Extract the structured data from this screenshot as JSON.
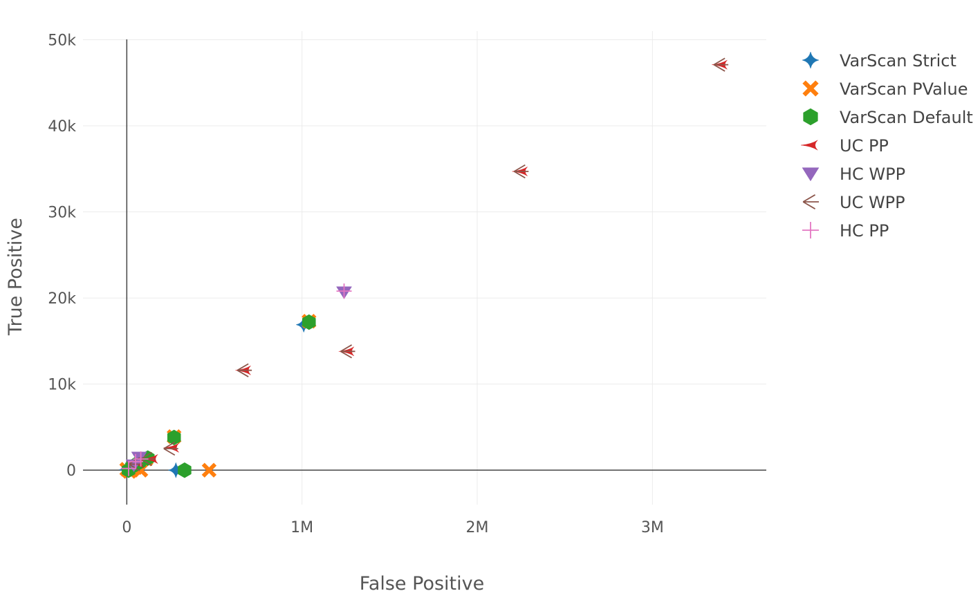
{
  "chart_data": {
    "type": "scatter",
    "title": "",
    "xlabel": "False Positive",
    "ylabel": "True Positive",
    "xlim": [
      -250000,
      3650000
    ],
    "ylim": [
      -4000,
      51000
    ],
    "x_ticks": [
      0,
      1000000,
      2000000,
      3000000
    ],
    "x_tick_labels": [
      "0",
      "1M",
      "2M",
      "3M"
    ],
    "y_ticks": [
      0,
      10000,
      20000,
      30000,
      40000,
      50000
    ],
    "y_tick_labels": [
      "0",
      "10k",
      "20k",
      "30k",
      "40k",
      "50k"
    ],
    "grid": true,
    "legend_position": "top-right",
    "series": [
      {
        "name": "VarScan Strict",
        "color": "#1f77b4",
        "symbol": "star-diamond",
        "points": [
          {
            "x": 0,
            "y": 50
          },
          {
            "x": 20000,
            "y": 200
          },
          {
            "x": 40000,
            "y": 500
          },
          {
            "x": 60000,
            "y": 800
          },
          {
            "x": 100000,
            "y": 1200
          },
          {
            "x": 280000,
            "y": 0
          },
          {
            "x": 1010000,
            "y": 16900
          }
        ]
      },
      {
        "name": "VarScan PValue",
        "color": "#ff7f0e",
        "symbol": "x",
        "points": [
          {
            "x": 0,
            "y": 100
          },
          {
            "x": 15000,
            "y": -150
          },
          {
            "x": 50000,
            "y": 300
          },
          {
            "x": 80000,
            "y": 0
          },
          {
            "x": 110000,
            "y": 1300
          },
          {
            "x": 270000,
            "y": 3900
          },
          {
            "x": 470000,
            "y": 0
          },
          {
            "x": 1040000,
            "y": 17300
          }
        ]
      },
      {
        "name": "VarScan Default",
        "color": "#2ca02c",
        "symbol": "hexagon",
        "points": [
          {
            "x": 10000,
            "y": 0
          },
          {
            "x": 30000,
            "y": 400
          },
          {
            "x": 70000,
            "y": 900
          },
          {
            "x": 120000,
            "y": 1400
          },
          {
            "x": 270000,
            "y": 3800
          },
          {
            "x": 330000,
            "y": 0
          },
          {
            "x": 1040000,
            "y": 17200
          }
        ]
      },
      {
        "name": "UC PP",
        "color": "#d62728",
        "symbol": "star-triangle-left",
        "points": [
          {
            "x": 60000,
            "y": 800
          },
          {
            "x": 140000,
            "y": 1300
          },
          {
            "x": 260000,
            "y": 2600
          },
          {
            "x": 670000,
            "y": 11600
          },
          {
            "x": 1260000,
            "y": 13800
          },
          {
            "x": 2250000,
            "y": 34700
          },
          {
            "x": 3390000,
            "y": 47100
          }
        ]
      },
      {
        "name": "HC WPP",
        "color": "#9467bd",
        "symbol": "triangle-down",
        "points": [
          {
            "x": 40000,
            "y": 600
          },
          {
            "x": 70000,
            "y": 1500
          },
          {
            "x": 1240000,
            "y": 20700
          }
        ]
      },
      {
        "name": "UC WPP",
        "color": "#8c564b",
        "symbol": "y-left",
        "points": [
          {
            "x": 50000,
            "y": 700
          },
          {
            "x": 120000,
            "y": 1300
          },
          {
            "x": 250000,
            "y": 2500
          },
          {
            "x": 670000,
            "y": 11600
          },
          {
            "x": 1260000,
            "y": 13800
          },
          {
            "x": 2250000,
            "y": 34700
          },
          {
            "x": 3390000,
            "y": 47100
          }
        ]
      },
      {
        "name": "HC PP",
        "color": "#e377c2",
        "symbol": "cross-thin",
        "points": [
          {
            "x": 10000,
            "y": 200
          },
          {
            "x": 50000,
            "y": 1000
          },
          {
            "x": 80000,
            "y": 1300
          },
          {
            "x": 1240000,
            "y": 20800
          }
        ]
      }
    ]
  }
}
